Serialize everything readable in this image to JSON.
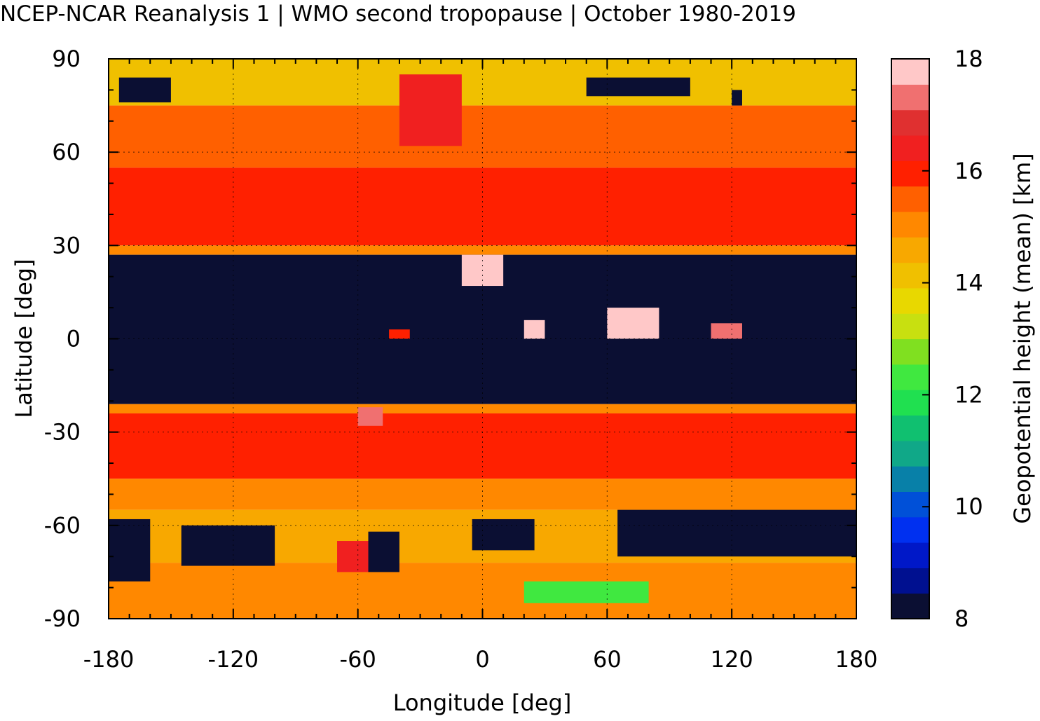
{
  "title": "NCEP-NCAR Reanalysis 1 | WMO second tropopause | October 1980-2019",
  "chart_data": {
    "type": "heatmap",
    "title": "NCEP-NCAR Reanalysis 1 | WMO second tropopause | October 1980-2019",
    "xlabel": "Longitude [deg]",
    "ylabel": "Latitude [deg]",
    "xlim": [
      -180,
      180
    ],
    "ylim": [
      -90,
      90
    ],
    "xticks": [
      "-180",
      "-120",
      "-60",
      "0",
      "60",
      "120",
      "180"
    ],
    "yticks": [
      "90",
      "60",
      "30",
      "0",
      "-30",
      "-60",
      "-90"
    ],
    "grid": true,
    "colorbar": {
      "label": "Geopotential height (mean) [km]",
      "range": [
        8,
        18
      ],
      "ticks": [
        "8",
        "10",
        "12",
        "14",
        "16",
        "18"
      ],
      "colors": [
        "#0b0f33",
        "#001090",
        "#0018c8",
        "#0030f0",
        "#0050d8",
        "#0880a8",
        "#10a888",
        "#10c070",
        "#20e050",
        "#40e840",
        "#80e020",
        "#c8e010",
        "#e8d800",
        "#f0c000",
        "#f8a800",
        "#ff8800",
        "#ff6000",
        "#ff2000",
        "#f02020",
        "#e03030",
        "#f07070",
        "#ffc8c8"
      ]
    },
    "bands": [
      {
        "lat": [
          90,
          75
        ],
        "value": 14.0
      },
      {
        "lat": [
          75,
          55
        ],
        "value": 15.3
      },
      {
        "lat": [
          55,
          30
        ],
        "value": 16.0
      },
      {
        "lat": [
          30,
          27
        ],
        "value": 15.0
      },
      {
        "lat": [
          27,
          -21
        ],
        "value": 8.0
      },
      {
        "lat": [
          -21,
          -24
        ],
        "value": 15.0
      },
      {
        "lat": [
          -24,
          -45
        ],
        "value": 16.0
      },
      {
        "lat": [
          -45,
          -55
        ],
        "value": 15.0
      },
      {
        "lat": [
          -55,
          -72
        ],
        "value": 14.5
      },
      {
        "lat": [
          -72,
          -90
        ],
        "value": 15.0
      }
    ],
    "regions": [
      {
        "lon": [
          -40,
          -10
        ],
        "lat": [
          85,
          62
        ],
        "value": 16.5
      },
      {
        "lon": [
          -175,
          -150
        ],
        "lat": [
          84,
          76
        ],
        "value": 8.0
      },
      {
        "lon": [
          50,
          100
        ],
        "lat": [
          84,
          78
        ],
        "value": 8.0
      },
      {
        "lon": [
          120,
          125
        ],
        "lat": [
          80,
          75
        ],
        "value": 8.0
      },
      {
        "lon": [
          -10,
          10
        ],
        "lat": [
          27,
          17
        ],
        "value": 17.8
      },
      {
        "lon": [
          20,
          30
        ],
        "lat": [
          6,
          0
        ],
        "value": 17.8
      },
      {
        "lon": [
          60,
          85
        ],
        "lat": [
          10,
          0
        ],
        "value": 17.8
      },
      {
        "lon": [
          110,
          125
        ],
        "lat": [
          5,
          0
        ],
        "value": 17.5
      },
      {
        "lon": [
          -45,
          -35
        ],
        "lat": [
          3,
          0
        ],
        "value": 16.0
      },
      {
        "lon": [
          -180,
          -160
        ],
        "lat": [
          -58,
          -78
        ],
        "value": 8.0
      },
      {
        "lon": [
          -145,
          -100
        ],
        "lat": [
          -60,
          -73
        ],
        "value": 8.0
      },
      {
        "lon": [
          -55,
          -40
        ],
        "lat": [
          -62,
          -75
        ],
        "value": 8.0
      },
      {
        "lon": [
          -5,
          25
        ],
        "lat": [
          -58,
          -68
        ],
        "value": 8.0
      },
      {
        "lon": [
          65,
          180
        ],
        "lat": [
          -55,
          -70
        ],
        "value": 8.0
      },
      {
        "lon": [
          -70,
          -55
        ],
        "lat": [
          -65,
          -75
        ],
        "value": 16.5
      },
      {
        "lon": [
          20,
          80
        ],
        "lat": [
          -78,
          -85
        ],
        "value": 12.5
      },
      {
        "lon": [
          -60,
          -48
        ],
        "lat": [
          -22,
          -28
        ],
        "value": 17.5
      }
    ]
  }
}
